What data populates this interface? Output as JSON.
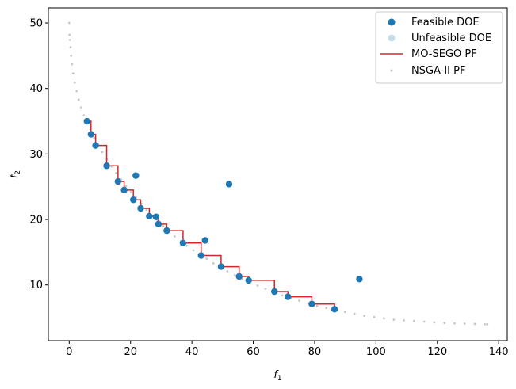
{
  "chart_data": {
    "type": "scatter",
    "xlabel": "f",
    "xlabel_sub": "1",
    "ylabel": "f",
    "ylabel_sub": "2",
    "xlim": [
      -6.8,
      142.8
    ],
    "ylim": [
      1.5,
      52.3
    ],
    "xticks": [
      0,
      20,
      40,
      60,
      80,
      100,
      120,
      140
    ],
    "yticks": [
      10,
      20,
      30,
      40,
      50
    ],
    "grid": false,
    "legend_position": "top-right",
    "colors": {
      "feasible": "#1f77b4",
      "unfeasible": "#1f77b4",
      "pareto_line": "#d62728",
      "nsga": "#c8c8c8"
    },
    "series": [
      {
        "name": "Feasible DOE",
        "kind": "scatter",
        "points": [
          [
            5.8,
            35.0
          ],
          [
            7.1,
            33.0
          ],
          [
            8.6,
            31.3
          ],
          [
            12.2,
            28.2
          ],
          [
            15.9,
            25.8
          ],
          [
            17.9,
            24.5
          ],
          [
            20.9,
            23.0
          ],
          [
            21.7,
            26.7
          ],
          [
            23.3,
            21.7
          ],
          [
            26.1,
            20.5
          ],
          [
            28.3,
            20.4
          ],
          [
            29.1,
            19.3
          ],
          [
            31.8,
            18.3
          ],
          [
            37.1,
            16.4
          ],
          [
            43.0,
            14.5
          ],
          [
            44.3,
            16.8
          ],
          [
            49.5,
            12.8
          ],
          [
            52.1,
            25.4
          ],
          [
            55.4,
            11.3
          ],
          [
            58.5,
            10.7
          ],
          [
            66.9,
            9.0
          ],
          [
            71.3,
            8.2
          ],
          [
            79.1,
            7.1
          ],
          [
            86.5,
            6.3
          ],
          [
            94.6,
            10.9
          ]
        ]
      },
      {
        "name": "Unfeasible DOE",
        "kind": "scatter",
        "points": []
      },
      {
        "name": "MO-SEGO PF",
        "kind": "step",
        "points": [
          [
            5.8,
            35.0
          ],
          [
            7.1,
            33.0
          ],
          [
            8.6,
            31.3
          ],
          [
            12.2,
            28.2
          ],
          [
            15.9,
            25.8
          ],
          [
            17.9,
            24.5
          ],
          [
            20.9,
            23.0
          ],
          [
            23.3,
            21.7
          ],
          [
            26.1,
            20.5
          ],
          [
            29.1,
            19.3
          ],
          [
            31.8,
            18.3
          ],
          [
            37.1,
            16.4
          ],
          [
            43.0,
            14.5
          ],
          [
            49.5,
            12.8
          ],
          [
            55.4,
            11.3
          ],
          [
            58.5,
            10.7
          ],
          [
            66.9,
            9.0
          ],
          [
            71.3,
            8.2
          ],
          [
            79.1,
            7.1
          ],
          [
            86.5,
            6.3
          ]
        ]
      },
      {
        "name": "NSGA-II PF",
        "kind": "scatter-small",
        "points": [
          [
            0.0,
            50.0
          ],
          [
            0.1,
            48.2
          ],
          [
            0.2,
            47.4
          ],
          [
            0.4,
            46.3
          ],
          [
            0.6,
            45.0
          ],
          [
            0.9,
            43.7
          ],
          [
            1.3,
            42.3
          ],
          [
            1.8,
            40.9
          ],
          [
            2.4,
            39.6
          ],
          [
            3.1,
            38.3
          ],
          [
            3.9,
            37.1
          ],
          [
            4.8,
            35.9
          ],
          [
            5.8,
            34.8
          ],
          [
            6.9,
            33.7
          ],
          [
            8.1,
            32.5
          ],
          [
            9.4,
            31.4
          ],
          [
            10.8,
            30.3
          ],
          [
            12.3,
            29.2
          ],
          [
            13.8,
            28.1
          ],
          [
            15.3,
            27.1
          ],
          [
            16.9,
            26.1
          ],
          [
            18.5,
            25.1
          ],
          [
            20.1,
            24.2
          ],
          [
            21.8,
            23.3
          ],
          [
            23.5,
            22.4
          ],
          [
            25.2,
            21.5
          ],
          [
            27.0,
            20.6
          ],
          [
            28.8,
            19.8
          ],
          [
            30.6,
            19.0
          ],
          [
            32.5,
            18.2
          ],
          [
            34.4,
            17.4
          ],
          [
            36.4,
            16.7
          ],
          [
            38.4,
            16.0
          ],
          [
            40.5,
            15.3
          ],
          [
            42.6,
            14.6
          ],
          [
            44.8,
            14.0
          ],
          [
            47.0,
            13.3
          ],
          [
            49.3,
            12.7
          ],
          [
            51.6,
            12.1
          ],
          [
            54.0,
            11.5
          ],
          [
            56.4,
            10.9
          ],
          [
            58.9,
            10.4
          ],
          [
            61.4,
            9.9
          ],
          [
            64.0,
            9.4
          ],
          [
            66.7,
            8.9
          ],
          [
            69.4,
            8.4
          ],
          [
            72.2,
            8.0
          ],
          [
            75.0,
            7.6
          ],
          [
            77.9,
            7.2
          ],
          [
            80.8,
            6.8
          ],
          [
            83.8,
            6.5
          ],
          [
            86.8,
            6.2
          ],
          [
            89.9,
            5.9
          ],
          [
            93.0,
            5.6
          ],
          [
            96.2,
            5.3
          ],
          [
            99.4,
            5.1
          ],
          [
            102.6,
            4.9
          ],
          [
            105.8,
            4.7
          ],
          [
            109.1,
            4.6
          ],
          [
            112.4,
            4.5
          ],
          [
            115.7,
            4.4
          ],
          [
            119.0,
            4.3
          ],
          [
            122.3,
            4.2
          ],
          [
            125.6,
            4.15
          ],
          [
            128.9,
            4.1
          ],
          [
            132.2,
            4.05
          ],
          [
            135.5,
            4.0
          ],
          [
            136.3,
            4.0
          ]
        ]
      }
    ]
  }
}
